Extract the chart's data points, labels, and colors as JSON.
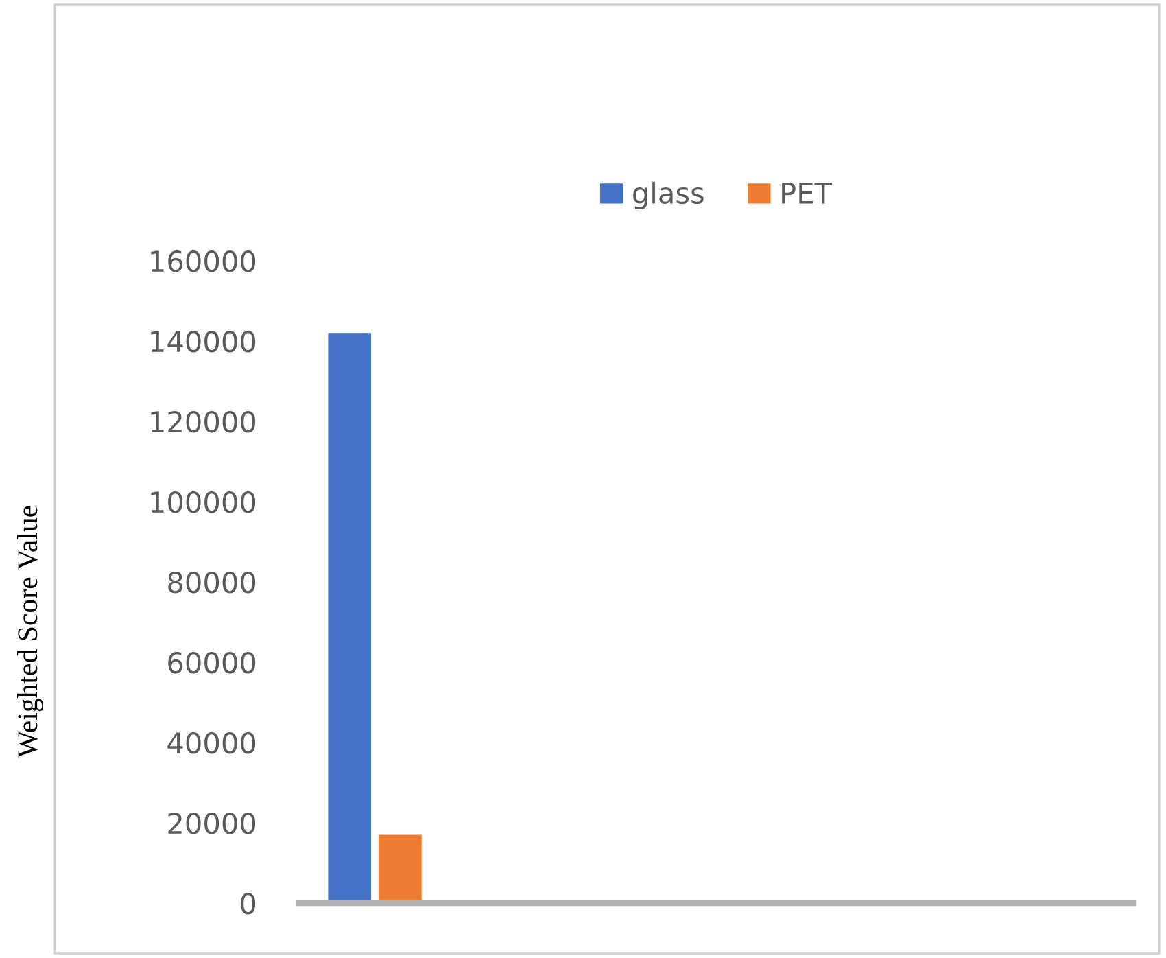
{
  "chart_data": {
    "type": "bar",
    "ylabel": "Weighted Score Value",
    "categories": [
      null
    ],
    "series": [
      {
        "name": "glass",
        "color": "#4472c4",
        "values": [
          142000
        ]
      },
      {
        "name": "PET",
        "color": "#ed7d31",
        "values": [
          17000
        ]
      }
    ],
    "ylim": [
      0,
      160000
    ],
    "yticks": [
      0,
      20000,
      40000,
      60000,
      80000,
      100000,
      120000,
      140000,
      160000
    ],
    "grid": false,
    "legend": "top"
  }
}
